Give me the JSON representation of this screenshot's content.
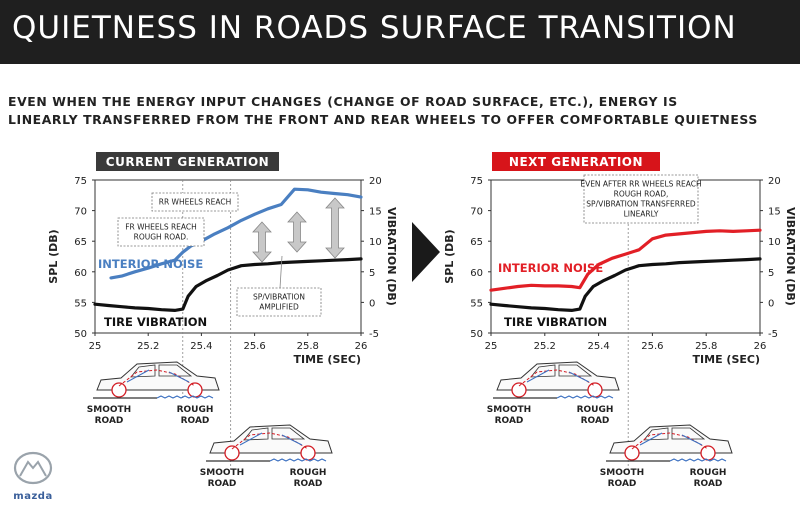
{
  "header": {
    "title": "QUIETNESS IN ROADS SURFACE TRANSITION"
  },
  "subtitle": {
    "line1": "EVEN WHEN THE ENERGY INPUT CHANGES (CHANGE OF ROAD SURFACE, ETC.), ENERGY IS",
    "line2": "LINEARLY TRANSFERRED FROM THE FRONT AND REAR WHEELS TO OFFER COMFORTABLE QUIETNESS"
  },
  "colors": {
    "header_bg": "#1f1f1f",
    "current_badge": "#3a3a3a",
    "next_badge": "#d7141a",
    "interior_current": "#4a7fc1",
    "interior_next": "#e21f26",
    "vibration": "#111111"
  },
  "chart_data": [
    {
      "type": "line",
      "badge": "CURRENT GENERATION",
      "xlabel": "TIME (SEC)",
      "ylabel": "SPL (DB)",
      "y2label": "VIBRATION (DB)",
      "xlim": [
        25,
        26
      ],
      "ylim": [
        50,
        75
      ],
      "y2lim": [
        -5,
        20
      ],
      "xticks": [
        "25",
        "25.2",
        "25.4",
        "25.6",
        "25.8",
        "26"
      ],
      "yticks": [
        "50",
        "55",
        "60",
        "65",
        "70",
        "75"
      ],
      "y2ticks": [
        "-5",
        "0",
        "5",
        "10",
        "15",
        "20"
      ],
      "series": [
        {
          "name": "INTERIOR NOISE",
          "axis": "left",
          "x": [
            25.06,
            25.1,
            25.15,
            25.2,
            25.25,
            25.3,
            25.33,
            25.36,
            25.4,
            25.45,
            25.5,
            25.55,
            25.6,
            25.65,
            25.7,
            25.75,
            25.8,
            25.85,
            25.9,
            25.95,
            26.0
          ],
          "y": [
            59,
            59.3,
            60,
            60.6,
            61.3,
            61.9,
            63.2,
            64.2,
            65,
            66.2,
            67.2,
            68.4,
            69.4,
            70.3,
            71,
            73.5,
            73.4,
            73,
            72.8,
            72.6,
            72.2
          ]
        },
        {
          "name": "TIRE VIBRATION",
          "axis": "left",
          "x": [
            25.0,
            25.05,
            25.1,
            25.15,
            25.2,
            25.25,
            25.3,
            25.33,
            25.35,
            25.38,
            25.42,
            25.46,
            25.5,
            25.55,
            25.6,
            25.65,
            25.7,
            25.75,
            25.8,
            25.85,
            25.9,
            25.95,
            26.0
          ],
          "y": [
            54.7,
            54.5,
            54.3,
            54.1,
            54,
            53.8,
            53.7,
            53.9,
            56,
            57.6,
            58.6,
            59.4,
            60.3,
            61,
            61.2,
            61.3,
            61.5,
            61.6,
            61.7,
            61.8,
            61.9,
            62,
            62.1
          ]
        }
      ],
      "annotations": [
        {
          "text": [
            "FR WHEELS REACH",
            "ROUGH ROAD."
          ],
          "x": 25.33
        },
        {
          "text": [
            "RR WHEELS REACH"
          ],
          "x": 25.51
        },
        {
          "text": [
            "SP/VIBRATION",
            "AMPLIFIED"
          ]
        }
      ],
      "cars": [
        {
          "left_label": [
            "SMOOTH",
            "ROAD"
          ],
          "right_label": [
            "ROUGH",
            "ROAD"
          ]
        },
        {
          "left_label": [
            "SMOOTH",
            "ROAD"
          ],
          "right_label": [
            "ROUGH",
            "ROAD"
          ]
        }
      ]
    },
    {
      "type": "line",
      "badge": "NEXT GENERATION",
      "xlabel": "TIME (SEC)",
      "ylabel": "SPL (DB)",
      "y2label": "VIBRATION (DB)",
      "xlim": [
        25,
        26
      ],
      "ylim": [
        50,
        75
      ],
      "y2lim": [
        -5,
        20
      ],
      "xticks": [
        "25",
        "25.2",
        "25.4",
        "25.6",
        "25.8",
        "26"
      ],
      "yticks": [
        "50",
        "55",
        "60",
        "65",
        "70",
        "75"
      ],
      "y2ticks": [
        "-5",
        "0",
        "5",
        "10",
        "15",
        "20"
      ],
      "series": [
        {
          "name": "INTERIOR NOISE",
          "axis": "left",
          "x": [
            25.0,
            25.05,
            25.1,
            25.15,
            25.2,
            25.25,
            25.3,
            25.33,
            25.36,
            25.4,
            25.45,
            25.5,
            25.55,
            25.6,
            25.65,
            25.7,
            25.75,
            25.8,
            25.85,
            25.9,
            25.95,
            26.0
          ],
          "y": [
            57,
            57.3,
            57.6,
            57.8,
            57.7,
            57.7,
            57.6,
            57.4,
            59.6,
            61.2,
            62.2,
            62.9,
            63.6,
            65.4,
            66,
            66.2,
            66.4,
            66.6,
            66.7,
            66.6,
            66.7,
            66.8
          ]
        },
        {
          "name": "TIRE VIBRATION",
          "axis": "left",
          "x": [
            25.0,
            25.05,
            25.1,
            25.15,
            25.2,
            25.25,
            25.3,
            25.33,
            25.35,
            25.38,
            25.42,
            25.46,
            25.5,
            25.55,
            25.6,
            25.65,
            25.7,
            25.75,
            25.8,
            25.85,
            25.9,
            25.95,
            26.0
          ],
          "y": [
            54.7,
            54.5,
            54.3,
            54.1,
            54,
            53.8,
            53.7,
            53.9,
            56,
            57.6,
            58.6,
            59.4,
            60.3,
            61,
            61.2,
            61.3,
            61.5,
            61.6,
            61.7,
            61.8,
            61.9,
            62,
            62.1
          ]
        }
      ],
      "annotations": [
        {
          "text": [
            "EVEN AFTER RR WHEELS REACH",
            "ROUGH ROAD,",
            "SP/VIBRATION TRANSFERRED",
            "LINEARLY"
          ],
          "x": 25.51
        }
      ],
      "cars": [
        {
          "left_label": [
            "SMOOTH",
            "ROAD"
          ],
          "right_label": [
            "ROUGH",
            "ROAD"
          ]
        },
        {
          "left_label": [
            "SMOOTH",
            "ROAD"
          ],
          "right_label": [
            "ROUGH",
            "ROAD"
          ]
        }
      ]
    }
  ],
  "logo": {
    "text": "mazda"
  }
}
